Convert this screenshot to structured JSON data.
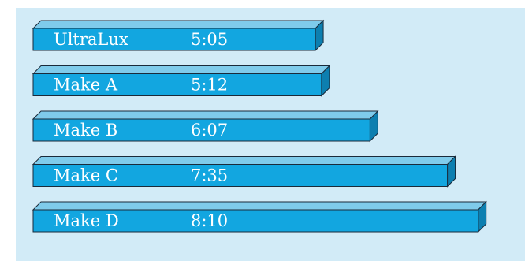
{
  "chart_data": {
    "type": "bar",
    "orientation": "horizontal",
    "categories": [
      "UltraLux",
      "Make A",
      "Make B",
      "Make C",
      "Make D"
    ],
    "values": [
      "5:05",
      "5:12",
      "6:07",
      "7:35",
      "8:10"
    ],
    "values_minutes": [
      5.083,
      5.2,
      6.117,
      7.583,
      8.167
    ],
    "grid": false,
    "legend": "none"
  },
  "colors": {
    "background": "#d2ebf7",
    "bar_front": "#12a6e0",
    "bar_top": "#7fcbeb",
    "bar_side": "#0d7fb0",
    "bar_outline": "#1a2a3a",
    "label_text": "#ffffff"
  }
}
